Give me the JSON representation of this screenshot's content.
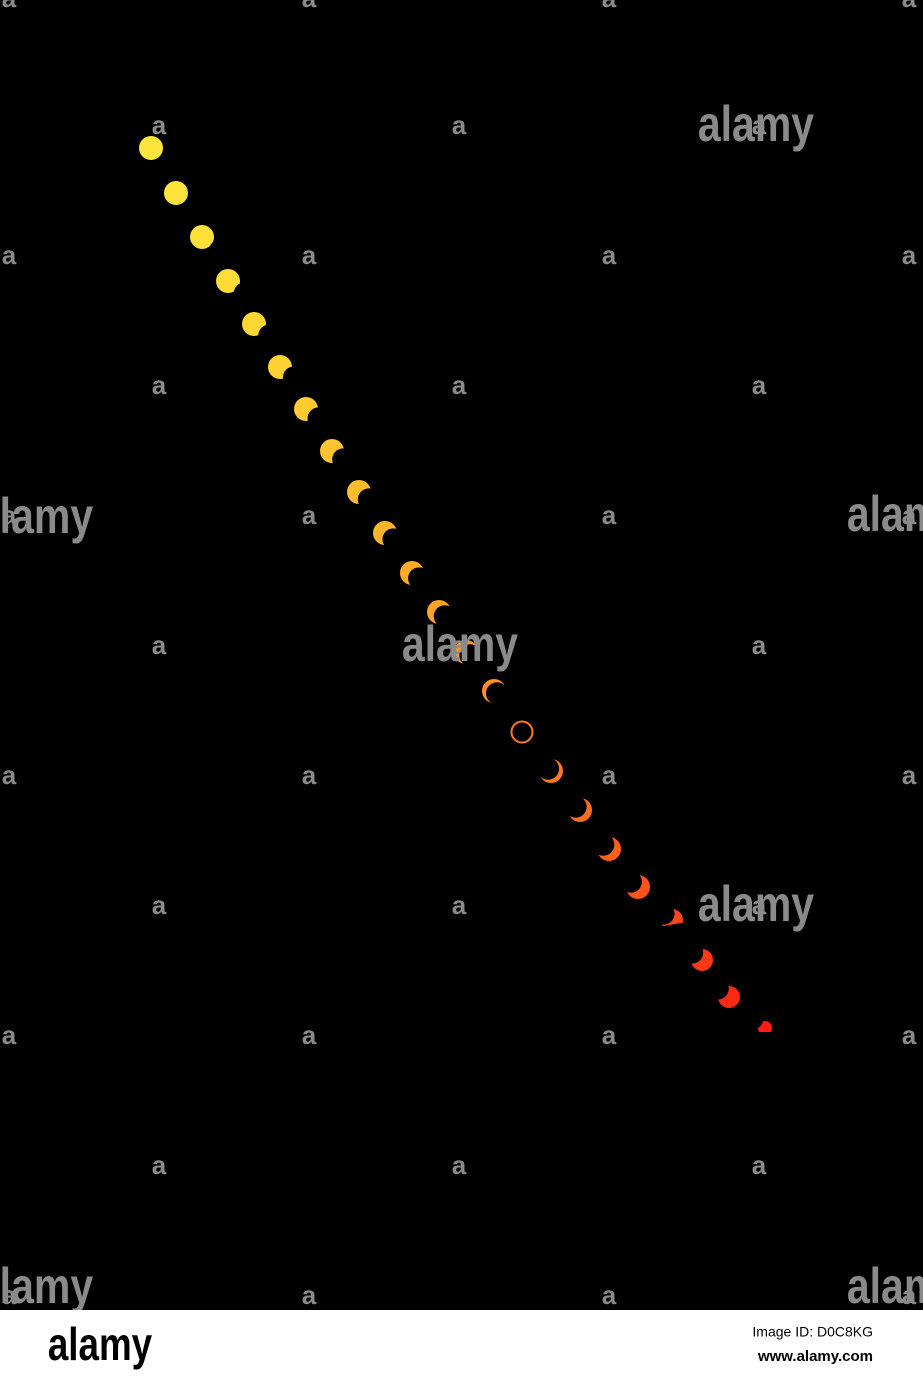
{
  "watermark": {
    "word": "alamy",
    "letter": "a"
  },
  "footer": {
    "logo": "alamy",
    "image_id": "Image ID: D0C8KG",
    "url": "www.alamy.com"
  }
}
